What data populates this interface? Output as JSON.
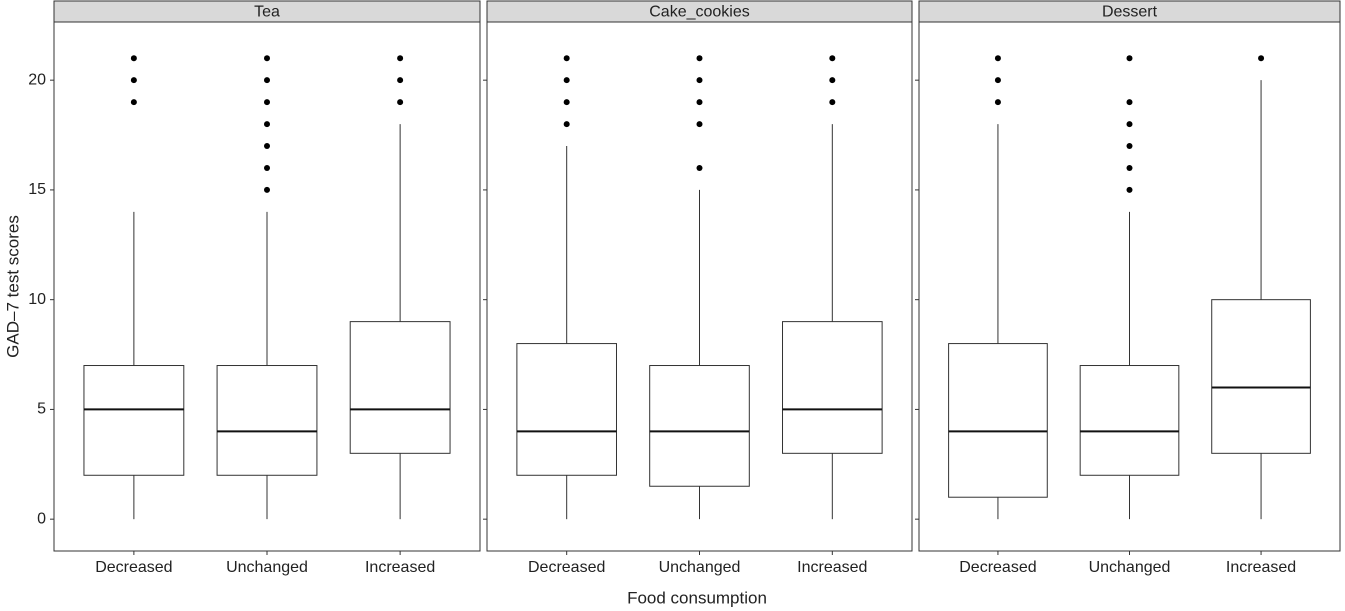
{
  "chart_data": [
    {
      "type": "box",
      "title": "Tea",
      "ylabel": "GAD–7 test scores",
      "categories": [
        "Decreased",
        "Unchanged",
        "Increased"
      ],
      "boxes": [
        {
          "whislo": 0,
          "q1": 2,
          "median": 5,
          "q3": 7,
          "whishi": 14,
          "outliers": [
            19,
            20,
            21
          ]
        },
        {
          "whislo": 0,
          "q1": 2,
          "median": 4,
          "q3": 7,
          "whishi": 14,
          "outliers": [
            15,
            16,
            17,
            18,
            19,
            20,
            21
          ]
        },
        {
          "whislo": 0,
          "q1": 3,
          "median": 5,
          "q3": 9,
          "whishi": 18,
          "outliers": [
            19,
            20,
            21
          ]
        }
      ],
      "ylim": [
        -1.45,
        22.65
      ],
      "yticks": [
        0,
        5,
        10,
        15,
        20
      ]
    },
    {
      "type": "box",
      "title": "Cake_cookies",
      "xlabel": "Food consumption",
      "categories": [
        "Decreased",
        "Unchanged",
        "Increased"
      ],
      "boxes": [
        {
          "whislo": 0,
          "q1": 2,
          "median": 4,
          "q3": 8,
          "whishi": 17,
          "outliers": [
            18,
            19,
            20,
            21
          ]
        },
        {
          "whislo": 0,
          "q1": 1.5,
          "median": 4,
          "q3": 7,
          "whishi": 15,
          "outliers": [
            16,
            18,
            19,
            20,
            21
          ]
        },
        {
          "whislo": 0,
          "q1": 3,
          "median": 5,
          "q3": 9,
          "whishi": 18,
          "outliers": [
            19,
            20,
            21
          ]
        }
      ],
      "ylim": [
        -1.45,
        22.65
      ],
      "yticks": [
        0,
        5,
        10,
        15,
        20
      ]
    },
    {
      "type": "box",
      "title": "Dessert",
      "categories": [
        "Decreased",
        "Unchanged",
        "Increased"
      ],
      "boxes": [
        {
          "whislo": 0,
          "q1": 1,
          "median": 4,
          "q3": 8,
          "whishi": 18,
          "outliers": [
            19,
            20,
            21
          ]
        },
        {
          "whislo": 0,
          "q1": 2,
          "median": 4,
          "q3": 7,
          "whishi": 14,
          "outliers": [
            15,
            16,
            17,
            18,
            19,
            21
          ]
        },
        {
          "whislo": 0,
          "q1": 3,
          "median": 6,
          "q3": 10,
          "whishi": 20,
          "outliers": [
            21
          ]
        }
      ],
      "ylim": [
        -1.45,
        22.65
      ],
      "yticks": [
        0,
        5,
        10,
        15,
        20
      ]
    }
  ]
}
